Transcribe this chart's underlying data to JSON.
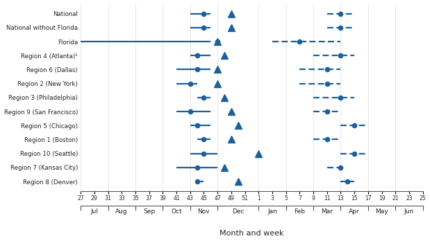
{
  "color": "#1C5F9A",
  "bg_color": "#FFFFFF",
  "xlabel": "Month and week",
  "regions": [
    "National",
    "National without Florida",
    "Florida",
    "Region 4 (Atlanta)¹",
    "Region 6 (Dallas)",
    "Region 2 (New York)",
    "Region 3 (Philadelphia)",
    "Region 9 (San Francisco)",
    "Region 5 (Chicago)",
    "Region 1 (Boston)",
    "Region 10 (Seattle)",
    "Region 7 (Kansas City)",
    "Region 8 (Denver)"
  ],
  "onset_start": [
    43,
    43,
    27,
    43,
    41,
    41,
    44,
    41,
    43,
    44,
    43,
    41,
    44
  ],
  "onset_end": [
    46,
    46,
    46,
    46,
    46,
    44,
    46,
    46,
    46,
    46,
    47,
    47,
    45
  ],
  "onset_median": [
    45,
    45,
    47,
    44,
    44,
    43,
    45,
    43,
    44,
    45,
    45,
    44,
    44
  ],
  "offset_start": [
    11,
    11,
    3,
    9,
    7,
    7,
    9,
    9,
    13,
    9,
    13,
    11,
    13
  ],
  "offset_end": [
    15,
    15,
    13,
    15,
    13,
    13,
    15,
    13,
    17,
    13,
    17,
    13,
    15
  ],
  "offset_median": [
    13,
    13,
    7,
    13,
    11,
    11,
    13,
    11,
    15,
    11,
    15,
    13,
    14
  ],
  "triangle_x": [
    49,
    49,
    47,
    48,
    47,
    47,
    48,
    49,
    50,
    49,
    53,
    48,
    50
  ],
  "week_ticks": [
    27,
    29,
    31,
    33,
    35,
    37,
    39,
    41,
    43,
    45,
    47,
    49,
    51,
    1,
    3,
    5,
    7,
    9,
    11,
    13,
    15,
    17,
    19,
    21,
    23,
    25
  ],
  "month_boundaries_w": [
    27,
    31,
    35,
    39,
    43,
    47,
    53,
    57,
    61,
    65,
    69,
    73,
    77
  ],
  "month_names": [
    "Jul",
    "Aug",
    "Sep",
    "Oct",
    "Nov",
    "Dec",
    "Jan",
    "Feb",
    "Mar",
    "Apr",
    "May",
    "Jun"
  ]
}
